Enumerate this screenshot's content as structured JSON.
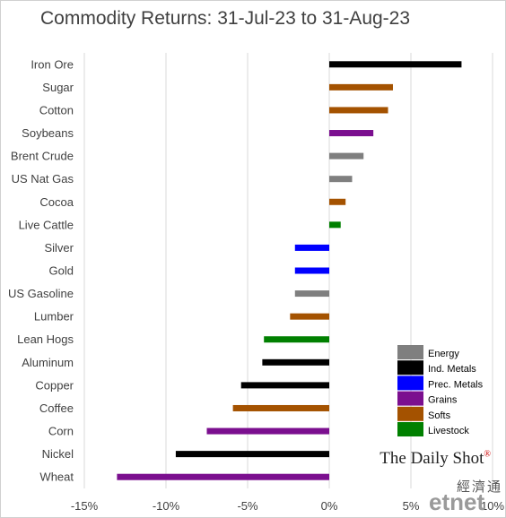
{
  "chart_data": {
    "type": "bar",
    "orientation": "horizontal",
    "title": "Commodity Returns: 31-Jul-23 to 31-Aug-23",
    "categories": [
      "Iron Ore",
      "Sugar",
      "Cotton",
      "Soybeans",
      "Brent Crude",
      "US Nat Gas",
      "Cocoa",
      "Live Cattle",
      "Silver",
      "Gold",
      "US Gasoline",
      "Lumber",
      "Lean Hogs",
      "Aluminum",
      "Copper",
      "Coffee",
      "Corn",
      "Nickel",
      "Wheat"
    ],
    "values": [
      8.1,
      3.9,
      3.6,
      2.7,
      2.1,
      1.4,
      1.0,
      0.7,
      -2.1,
      -2.1,
      -2.1,
      -2.4,
      -4.0,
      -4.1,
      -5.4,
      -5.9,
      -7.5,
      -9.4,
      -13.0
    ],
    "groups": [
      "Ind. Metals",
      "Softs",
      "Softs",
      "Grains",
      "Energy",
      "Energy",
      "Softs",
      "Livestock",
      "Prec. Metals",
      "Prec. Metals",
      "Energy",
      "Softs",
      "Livestock",
      "Ind. Metals",
      "Ind. Metals",
      "Softs",
      "Grains",
      "Ind. Metals",
      "Grains"
    ],
    "xlim": [
      -15,
      10
    ],
    "x_ticks": [
      -15,
      -10,
      -5,
      0,
      5,
      10
    ],
    "x_tick_labels": [
      "-15%",
      "-10%",
      "-5%",
      "0%",
      "5%",
      "10%"
    ],
    "xlabel": "",
    "ylabel": "",
    "grid": "vertical",
    "legend_position": "bottom-right",
    "legend": [
      {
        "name": "Energy",
        "color": "#7f7f7f"
      },
      {
        "name": "Ind. Metals",
        "color": "#000000"
      },
      {
        "name": "Prec. Metals",
        "color": "#0000ff"
      },
      {
        "name": "Grains",
        "color": "#7b0f8f"
      },
      {
        "name": "Softs",
        "color": "#a45200"
      },
      {
        "name": "Livestock",
        "color": "#008000"
      }
    ]
  },
  "watermark": {
    "source": "The Daily Shot",
    "registered": "®",
    "cn": "經濟通",
    "brand": "etnet"
  }
}
